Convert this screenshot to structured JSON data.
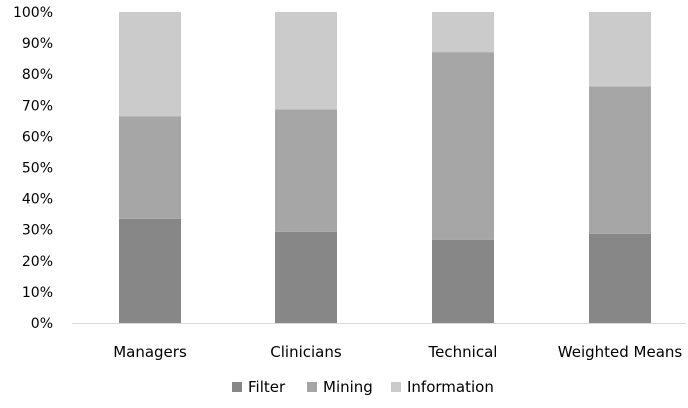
{
  "chart_data": {
    "type": "bar",
    "stacked": "percent",
    "categories": [
      "Managers",
      "Clinicians",
      "Technical",
      "Weighted Means"
    ],
    "series": [
      {
        "name": "Filter",
        "values": [
          33.5,
          29.3,
          26.8,
          28.7
        ],
        "color": "#878787"
      },
      {
        "name": "Mining",
        "values": [
          33.0,
          39.4,
          60.3,
          47.4
        ],
        "color": "#a6a6a6"
      },
      {
        "name": "Information",
        "values": [
          33.5,
          31.3,
          12.9,
          23.9
        ],
        "color": "#cbcbcb"
      }
    ],
    "y_ticks": [
      "0%",
      "10%",
      "20%",
      "30%",
      "40%",
      "50%",
      "60%",
      "70%",
      "80%",
      "90%",
      "100%"
    ],
    "ylim": [
      0,
      100
    ],
    "grid": false,
    "legend_position": "bottom"
  }
}
